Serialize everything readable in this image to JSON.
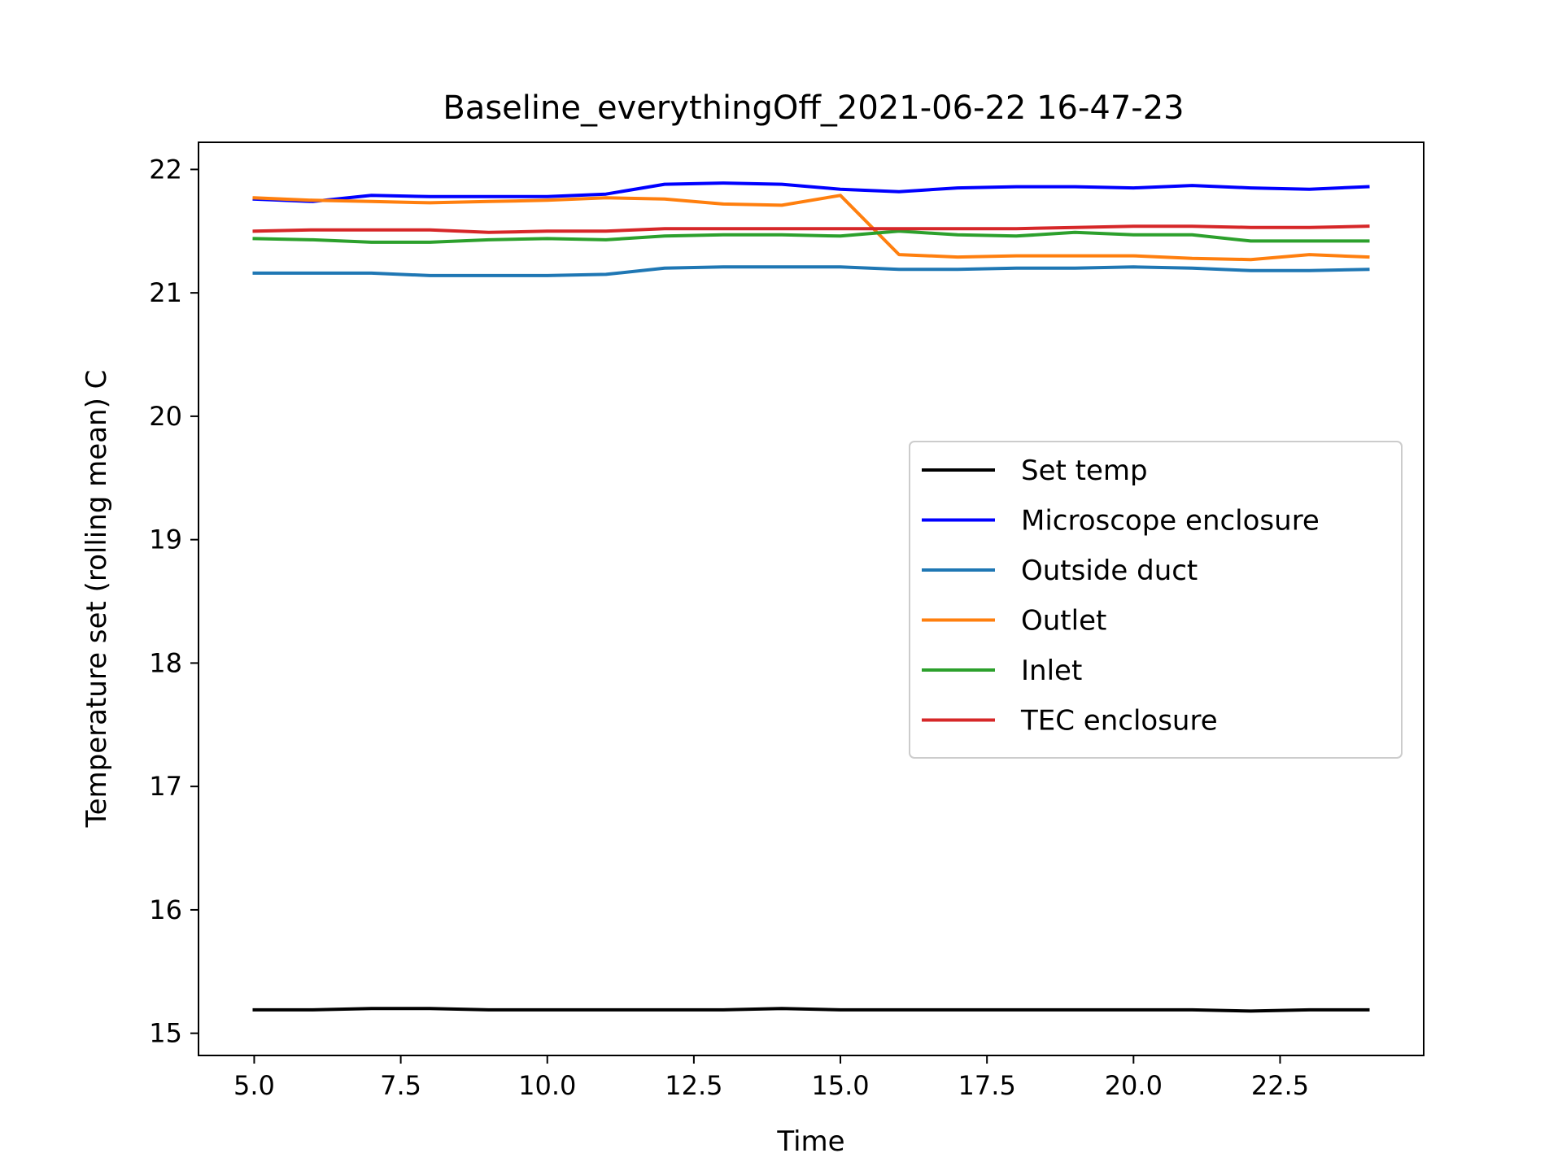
{
  "chart_data": {
    "type": "line",
    "title": "Baseline_everythingOff_2021-06-22 16-47-23",
    "xlabel": "Time",
    "ylabel": "Temperature set (rolling mean) C",
    "xlim": [
      4.05,
      24.95
    ],
    "ylim": [
      14.82,
      22.22
    ],
    "xticks": [
      5.0,
      7.5,
      10.0,
      12.5,
      15.0,
      17.5,
      20.0,
      22.5
    ],
    "xtick_labels": [
      "5.0",
      "7.5",
      "10.0",
      "12.5",
      "15.0",
      "17.5",
      "20.0",
      "22.5"
    ],
    "yticks": [
      15,
      16,
      17,
      18,
      19,
      20,
      21,
      22
    ],
    "ytick_labels": [
      "15",
      "16",
      "17",
      "18",
      "19",
      "20",
      "21",
      "22"
    ],
    "grid": false,
    "legend_position": "center-right",
    "x": [
      5,
      6,
      7,
      8,
      9,
      10,
      11,
      12,
      13,
      14,
      15,
      16,
      17,
      18,
      19,
      20,
      21,
      22,
      23,
      24
    ],
    "series": [
      {
        "name": "Set temp",
        "color": "#000000",
        "values": [
          15.19,
          15.19,
          15.2,
          15.2,
          15.19,
          15.19,
          15.19,
          15.19,
          15.19,
          15.2,
          15.19,
          15.19,
          15.19,
          15.19,
          15.19,
          15.19,
          15.19,
          15.18,
          15.19,
          15.19
        ]
      },
      {
        "name": "Microscope enclosure",
        "color": "#0000ff",
        "values": [
          21.76,
          21.74,
          21.79,
          21.78,
          21.78,
          21.78,
          21.8,
          21.88,
          21.89,
          21.88,
          21.84,
          21.82,
          21.85,
          21.86,
          21.86,
          21.85,
          21.87,
          21.85,
          21.84,
          21.86
        ]
      },
      {
        "name": "Outside duct",
        "color": "#1f77b4",
        "values": [
          21.16,
          21.16,
          21.16,
          21.14,
          21.14,
          21.14,
          21.15,
          21.2,
          21.21,
          21.21,
          21.21,
          21.19,
          21.19,
          21.2,
          21.2,
          21.21,
          21.2,
          21.18,
          21.18,
          21.19
        ]
      },
      {
        "name": "Outlet",
        "color": "#ff7f0e",
        "values": [
          21.77,
          21.75,
          21.74,
          21.73,
          21.74,
          21.75,
          21.77,
          21.76,
          21.72,
          21.71,
          21.79,
          21.31,
          21.29,
          21.3,
          21.3,
          21.3,
          21.28,
          21.27,
          21.31,
          21.29
        ]
      },
      {
        "name": "Inlet",
        "color": "#2ca02c",
        "values": [
          21.44,
          21.43,
          21.41,
          21.41,
          21.43,
          21.44,
          21.43,
          21.46,
          21.47,
          21.47,
          21.46,
          21.5,
          21.47,
          21.46,
          21.49,
          21.47,
          21.47,
          21.42,
          21.42,
          21.42
        ]
      },
      {
        "name": "TEC enclosure",
        "color": "#d62728",
        "values": [
          21.5,
          21.51,
          21.51,
          21.51,
          21.49,
          21.5,
          21.5,
          21.52,
          21.52,
          21.52,
          21.52,
          21.52,
          21.52,
          21.52,
          21.53,
          21.54,
          21.54,
          21.53,
          21.53,
          21.54
        ]
      }
    ]
  }
}
